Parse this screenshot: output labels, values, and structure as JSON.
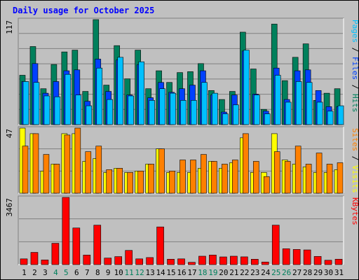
{
  "title": "Daily usage for October 2025",
  "colors": {
    "background": "#c0c0c0",
    "title": "#0000ff",
    "hits": "#00805c",
    "files": "#0040ff",
    "pages": "#00c0ff",
    "visits": "#ffff00",
    "sites": "#ff8000",
    "kbytes": "#ff0000",
    "weekend_day": "#00805c",
    "weekday": "#000000"
  },
  "chart_data": [
    {
      "type": "bar",
      "panel": "top",
      "ymax_label": "117",
      "ylim": [
        0,
        117
      ],
      "right_label": [
        "Pages",
        " / ",
        "Files",
        " / ",
        "Hits"
      ],
      "categories": [
        "1",
        "2",
        "3",
        "4",
        "5",
        "6",
        "7",
        "8",
        "9",
        "10",
        "11",
        "12",
        "13",
        "14",
        "15",
        "16",
        "17",
        "18",
        "19",
        "20",
        "21",
        "22",
        "23",
        "24",
        "25",
        "26",
        "27",
        "28",
        "29",
        "30",
        "31"
      ],
      "series": [
        {
          "name": "Hits",
          "values": [
            55,
            87,
            40,
            67,
            81,
            83,
            37,
            117,
            44,
            88,
            51,
            83,
            40,
            60,
            47,
            58,
            59,
            68,
            38,
            28,
            37,
            103,
            62,
            17,
            112,
            49,
            75,
            90,
            27,
            35,
            40
          ]
        },
        {
          "name": "Files",
          "values": [
            48,
            68,
            35,
            48,
            60,
            61,
            26,
            73,
            37,
            72,
            33,
            67,
            30,
            47,
            36,
            40,
            44,
            60,
            33,
            14,
            33,
            82,
            34,
            15,
            63,
            28,
            60,
            61,
            38,
            20,
            20
          ]
        },
        {
          "name": "Pages",
          "values": [
            48,
            47,
            32,
            31,
            56,
            33,
            21,
            63,
            28,
            75,
            32,
            70,
            27,
            40,
            35,
            27,
            27,
            47,
            35,
            12,
            22,
            83,
            33,
            12,
            55,
            25,
            48,
            47,
            25,
            15,
            21
          ]
        }
      ],
      "grid": true
    },
    {
      "type": "bar",
      "panel": "middle",
      "ymax_label": "47",
      "ylim": [
        0,
        47
      ],
      "right_label": [
        "Sites",
        " / ",
        "Visits"
      ],
      "series": [
        {
          "name": "Visits",
          "values": [
            47,
            43,
            16,
            21,
            43,
            43,
            23,
            25,
            15,
            18,
            15,
            16,
            21,
            32,
            15,
            15,
            15,
            18,
            23,
            18,
            22,
            40,
            15,
            15,
            43,
            24,
            21,
            19,
            15,
            15,
            17
          ]
        },
        {
          "name": "Sites",
          "values": [
            34,
            43,
            28,
            21,
            42,
            47,
            30,
            34,
            17,
            18,
            15,
            16,
            21,
            32,
            16,
            24,
            24,
            28,
            23,
            21,
            24,
            43,
            23,
            12,
            30,
            23,
            34,
            21,
            29,
            21,
            22
          ]
        }
      ],
      "grid": true
    },
    {
      "type": "bar",
      "panel": "bottom",
      "ymax_label": "3467",
      "ylim": [
        0,
        3467
      ],
      "right_label": [
        "KBytes"
      ],
      "series": [
        {
          "name": "KBytes",
          "values": [
            296,
            631,
            241,
            1099,
            3467,
            1889,
            493,
            2035,
            338,
            413,
            732,
            296,
            364,
            1944,
            279,
            296,
            118,
            434,
            494,
            397,
            434,
            400,
            278,
            134,
            2035,
            818,
            782,
            758,
            423,
            225,
            279
          ]
        }
      ],
      "grid": true
    }
  ],
  "x_labels": [
    {
      "t": "1",
      "weekend": false
    },
    {
      "t": "2",
      "weekend": false
    },
    {
      "t": "3",
      "weekend": false
    },
    {
      "t": "4",
      "weekend": true
    },
    {
      "t": "5",
      "weekend": true
    },
    {
      "t": "6",
      "weekend": false
    },
    {
      "t": "7",
      "weekend": false
    },
    {
      "t": "8",
      "weekend": false
    },
    {
      "t": "9",
      "weekend": false
    },
    {
      "t": "10",
      "weekend": false
    },
    {
      "t": "11",
      "weekend": true
    },
    {
      "t": "12",
      "weekend": true
    },
    {
      "t": "13",
      "weekend": false
    },
    {
      "t": "14",
      "weekend": false
    },
    {
      "t": "15",
      "weekend": false
    },
    {
      "t": "16",
      "weekend": false
    },
    {
      "t": "17",
      "weekend": false
    },
    {
      "t": "18",
      "weekend": true
    },
    {
      "t": "19",
      "weekend": true
    },
    {
      "t": "20",
      "weekend": false
    },
    {
      "t": "21",
      "weekend": false
    },
    {
      "t": "22",
      "weekend": false
    },
    {
      "t": "23",
      "weekend": false
    },
    {
      "t": "24",
      "weekend": false
    },
    {
      "t": "25",
      "weekend": true
    },
    {
      "t": "26",
      "weekend": true
    },
    {
      "t": "27",
      "weekend": false
    },
    {
      "t": "28",
      "weekend": false
    },
    {
      "t": "29",
      "weekend": false
    },
    {
      "t": "30",
      "weekend": false
    },
    {
      "t": "31",
      "weekend": false
    }
  ]
}
